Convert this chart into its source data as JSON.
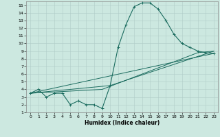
{
  "xlabel": "Humidex (Indice chaleur)",
  "xlim": [
    -0.5,
    23.5
  ],
  "ylim": [
    1,
    15.5
  ],
  "xticks": [
    0,
    1,
    2,
    3,
    4,
    5,
    6,
    7,
    8,
    9,
    10,
    11,
    12,
    13,
    14,
    15,
    16,
    17,
    18,
    19,
    20,
    21,
    22,
    23
  ],
  "yticks": [
    1,
    2,
    3,
    4,
    5,
    6,
    7,
    8,
    9,
    10,
    11,
    12,
    13,
    14,
    15
  ],
  "bg_color": "#cce8e0",
  "grid_color": "#b0ccc8",
  "line_color": "#1a6b5e",
  "curve": {
    "x": [
      0,
      1,
      2,
      3,
      4,
      5,
      6,
      7,
      8,
      9,
      10,
      11,
      12,
      13,
      14,
      15,
      16,
      17,
      18,
      19,
      20,
      21,
      22,
      23
    ],
    "y": [
      3.5,
      4.0,
      3.0,
      3.5,
      3.5,
      2.0,
      2.5,
      2.0,
      2.0,
      1.5,
      4.5,
      9.5,
      12.5,
      14.8,
      15.3,
      15.3,
      14.5,
      13.0,
      11.2,
      10.0,
      9.5,
      9.0,
      8.8,
      8.7
    ]
  },
  "line_a": {
    "x": [
      0,
      23
    ],
    "y": [
      3.5,
      8.7
    ]
  },
  "line_b": {
    "x": [
      0,
      9,
      21,
      23
    ],
    "y": [
      3.5,
      4.0,
      8.8,
      9.0
    ]
  },
  "line_c": {
    "x": [
      0,
      10,
      23
    ],
    "y": [
      3.5,
      4.5,
      9.0
    ]
  }
}
